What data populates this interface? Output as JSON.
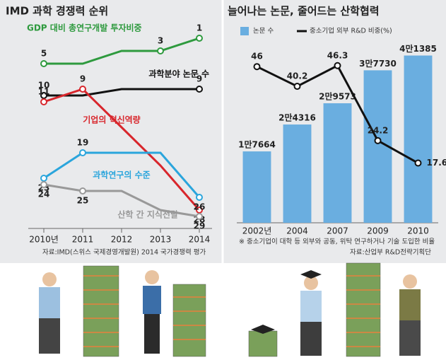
{
  "chart_data": [
    {
      "type": "line",
      "title": "IMD 과학 경쟁력 순위",
      "categories": [
        "2010년",
        "2011",
        "2012",
        "2013",
        "2014"
      ],
      "ylim": [
        0,
        30
      ],
      "y_inverted": true,
      "series": [
        {
          "name": "GDP 대비 총연구개발 투자비중",
          "color": "#2e9a3e",
          "values": [
            5,
            5,
            3,
            3,
            1
          ],
          "value_labels": [
            "5",
            null,
            null,
            "3",
            "1"
          ]
        },
        {
          "name": "과학분야 논문 수",
          "color": "#111111",
          "values": [
            10,
            10,
            9,
            9,
            9
          ],
          "value_labels": [
            "10",
            null,
            null,
            null,
            "9"
          ]
        },
        {
          "name": "기업의 혁신역량",
          "color": "#d8262c",
          "values": [
            11,
            9,
            15,
            21,
            28
          ],
          "value_labels": [
            "11",
            "9",
            null,
            null,
            "28"
          ]
        },
        {
          "name": "과학연구의 수준",
          "color": "#2aa5dc",
          "values": [
            23,
            19,
            19,
            19,
            26
          ],
          "value_labels": [
            "23",
            "19",
            null,
            null,
            "26"
          ]
        },
        {
          "name": "산학 간 지식전달",
          "color": "#999999",
          "values": [
            24,
            25,
            25,
            28,
            29
          ],
          "value_labels": [
            "24",
            "25",
            null,
            null,
            "29"
          ]
        }
      ],
      "source": "자료:IMD(스위스 국제경영개발원) 2014 국가경쟁력 평가"
    },
    {
      "type": "bar_line",
      "title": "늘어나는 논문, 줄어드는 산학협력",
      "categories": [
        "2002년",
        "2004",
        "2007",
        "2009",
        "2010"
      ],
      "ylim": [
        0,
        42000
      ],
      "y2lim": [
        0,
        50
      ],
      "series": [
        {
          "name": "논문 수",
          "color": "#6aaee0",
          "values": [
            17664,
            24316,
            29573,
            37730,
            41385
          ],
          "value_labels": [
            "1만7664",
            "2만4316",
            "2만9573",
            "3만7730",
            "4만1385"
          ]
        },
        {
          "name": "중소기업 외부 R&D 비중(%)",
          "color": "#111111",
          "axis": "y2",
          "values": [
            46,
            40.2,
            46.3,
            24.2,
            17.6
          ]
        }
      ],
      "note": "※ 중소기업이 대학 등 외부와 공동, 위탁 연구하거나 기술 도입한 비율",
      "source": "자료:산업부 R&D전략기획단"
    }
  ]
}
